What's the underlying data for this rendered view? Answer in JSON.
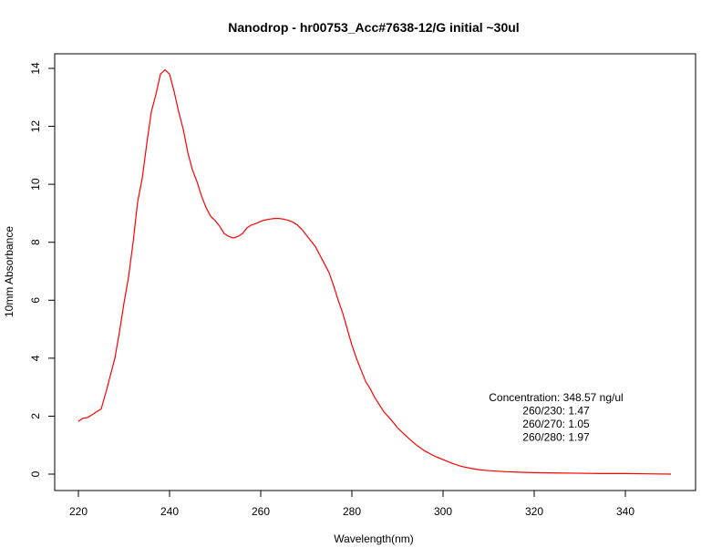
{
  "chart_data": {
    "type": "line",
    "title": "Nanodrop - hr00753_Acc#7638-12/G initial  ~30ul",
    "xlabel": "Wavelength(nm)",
    "ylabel": "10mm Absorbance",
    "xlim": [
      220,
      350
    ],
    "ylim": [
      0,
      14
    ],
    "xticks": [
      220,
      240,
      260,
      280,
      300,
      320,
      340
    ],
    "yticks": [
      0,
      2,
      4,
      6,
      8,
      10,
      12,
      14
    ],
    "grid": false,
    "line_color": "#ff0000",
    "series": [
      {
        "x": [
          220,
          221,
          222,
          223,
          224,
          225,
          226,
          227,
          228,
          229,
          230,
          231,
          232,
          233,
          234,
          235,
          236,
          237,
          238,
          239,
          240,
          241,
          242,
          243,
          244,
          245,
          246,
          247,
          248,
          249,
          250,
          251,
          252,
          253,
          254,
          255,
          256,
          257,
          258,
          259,
          260,
          261,
          262,
          263,
          264,
          265,
          266,
          267,
          268,
          269,
          270,
          271,
          272,
          273,
          274,
          275,
          276,
          277,
          278,
          279,
          280,
          281,
          282,
          283,
          284,
          285,
          286,
          287,
          288,
          289,
          290,
          292,
          294,
          296,
          298,
          300,
          302,
          304,
          306,
          308,
          310,
          312,
          314,
          316,
          318,
          320,
          325,
          330,
          335,
          340,
          345,
          350
        ],
        "y": [
          1.82,
          1.93,
          1.95,
          2.05,
          2.15,
          2.25,
          2.8,
          3.4,
          4.0,
          4.9,
          5.9,
          6.8,
          8.0,
          9.4,
          10.2,
          11.4,
          12.5,
          13.1,
          13.8,
          13.95,
          13.8,
          13.2,
          12.5,
          11.9,
          11.1,
          10.5,
          10.1,
          9.6,
          9.2,
          8.9,
          8.75,
          8.55,
          8.3,
          8.2,
          8.15,
          8.2,
          8.3,
          8.5,
          8.6,
          8.65,
          8.72,
          8.77,
          8.8,
          8.82,
          8.82,
          8.8,
          8.76,
          8.7,
          8.6,
          8.45,
          8.25,
          8.05,
          7.85,
          7.55,
          7.25,
          6.95,
          6.5,
          6.0,
          5.55,
          5.0,
          4.45,
          4.0,
          3.6,
          3.2,
          2.95,
          2.65,
          2.4,
          2.15,
          1.98,
          1.8,
          1.6,
          1.3,
          1.02,
          0.8,
          0.63,
          0.5,
          0.37,
          0.27,
          0.2,
          0.15,
          0.12,
          0.1,
          0.08,
          0.07,
          0.06,
          0.05,
          0.04,
          0.03,
          0.02,
          0.02,
          0.01,
          0.0
        ]
      }
    ],
    "annotation_lines": [
      "Concentration: 348.57 ng/ul",
      "260/230: 1.47",
      "260/270: 1.05",
      "260/280: 1.97"
    ]
  }
}
